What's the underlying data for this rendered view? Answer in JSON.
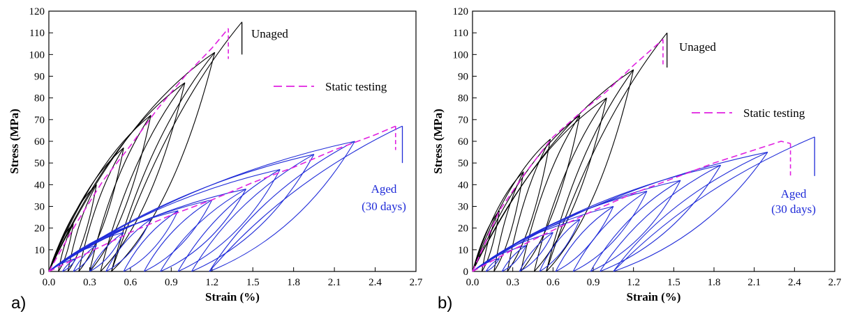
{
  "chart_data": [
    {
      "panel_label": "a)",
      "type": "line",
      "xlabel": "Strain (%)",
      "ylabel": "Stress (MPa)",
      "xlim": [
        0,
        2.7
      ],
      "ylim": [
        0,
        120
      ],
      "xticks": [
        "0.0",
        "0.3",
        "0.6",
        "0.9",
        "1.2",
        "1.5",
        "1.8",
        "2.1",
        "2.4",
        "2.7"
      ],
      "yticks": [
        "0",
        "10",
        "20",
        "30",
        "40",
        "50",
        "60",
        "70",
        "80",
        "90",
        "100",
        "110",
        "120"
      ],
      "legend": {
        "label": "Static testing",
        "position": "right"
      },
      "annotations": {
        "unaged": "Unaged",
        "aged_line1": "Aged",
        "aged_line2": "(30 days)"
      },
      "series": [
        {
          "color": "#000000",
          "peak_x": 1.42,
          "peak_y": 115,
          "fracture_y": 100,
          "cycles": [
            {
              "peak": [
                0.18,
                22
              ],
              "unload": 0.07
            },
            {
              "peak": [
                0.35,
                40
              ],
              "unload": 0.14
            },
            {
              "peak": [
                0.55,
                57
              ],
              "unload": 0.22
            },
            {
              "peak": [
                0.75,
                72
              ],
              "unload": 0.3
            },
            {
              "peak": [
                1.0,
                87
              ],
              "unload": 0.38
            },
            {
              "peak": [
                1.22,
                101
              ],
              "unload": 0.46
            }
          ]
        },
        {
          "color": "#1f2bd8",
          "peak_x": 2.6,
          "peak_y": 67,
          "fracture_y": 50,
          "cycles": [
            {
              "peak": [
                0.2,
                6
              ],
              "unload": 0.1
            },
            {
              "peak": [
                0.35,
                12
              ],
              "unload": 0.18
            },
            {
              "peak": [
                0.55,
                18
              ],
              "unload": 0.3
            },
            {
              "peak": [
                0.75,
                24
              ],
              "unload": 0.42
            },
            {
              "peak": [
                0.95,
                28
              ],
              "unload": 0.55
            },
            {
              "peak": [
                1.2,
                33
              ],
              "unload": 0.7
            },
            {
              "peak": [
                1.45,
                38
              ],
              "unload": 0.82
            },
            {
              "peak": [
                1.7,
                47
              ],
              "unload": 0.95
            },
            {
              "peak": [
                1.95,
                54
              ],
              "unload": 1.05
            },
            {
              "peak": [
                2.25,
                60
              ],
              "unload": 1.18
            }
          ]
        }
      ],
      "static_testing": [
        {
          "color": "#e020e0",
          "points": [
            [
              0,
              0
            ],
            [
              0.2,
              22
            ],
            [
              0.4,
              42
            ],
            [
              0.6,
              58
            ],
            [
              0.8,
              75
            ],
            [
              1.0,
              90
            ],
            [
              1.2,
              103
            ],
            [
              1.32,
              112
            ]
          ],
          "drop_to": 98
        },
        {
          "color": "#e020e0",
          "points": [
            [
              0,
              0
            ],
            [
              0.3,
              9
            ],
            [
              0.6,
              18
            ],
            [
              0.9,
              26
            ],
            [
              1.2,
              33
            ],
            [
              1.5,
              41
            ],
            [
              1.8,
              48
            ],
            [
              2.1,
              56
            ],
            [
              2.4,
              63
            ],
            [
              2.55,
              67
            ]
          ],
          "drop_to": 56
        }
      ]
    },
    {
      "panel_label": "b)",
      "type": "line",
      "xlabel": "Strain (%)",
      "ylabel": "Stress (MPa)",
      "xlim": [
        0,
        2.7
      ],
      "ylim": [
        0,
        120
      ],
      "xticks": [
        "0.0",
        "0.3",
        "0.6",
        "0.9",
        "1.2",
        "1.5",
        "1.8",
        "2.1",
        "2.4",
        "2.7"
      ],
      "yticks": [
        "0",
        "10",
        "20",
        "30",
        "40",
        "50",
        "60",
        "70",
        "80",
        "90",
        "100",
        "110",
        "120"
      ],
      "legend": {
        "label": "Static testing",
        "position": "right"
      },
      "annotations": {
        "unaged": "Unaged",
        "aged_line1": "Aged",
        "aged_line2": "(30 days)"
      },
      "series": [
        {
          "color": "#000000",
          "peak_x": 1.45,
          "peak_y": 110,
          "fracture_y": 94,
          "cycles": [
            {
              "peak": [
                0.2,
                28
              ],
              "unload": 0.07
            },
            {
              "peak": [
                0.38,
                46
              ],
              "unload": 0.16
            },
            {
              "peak": [
                0.58,
                61
              ],
              "unload": 0.26
            },
            {
              "peak": [
                0.8,
                72
              ],
              "unload": 0.36
            },
            {
              "peak": [
                1.0,
                80
              ],
              "unload": 0.46
            },
            {
              "peak": [
                1.2,
                93
              ],
              "unload": 0.55
            }
          ]
        },
        {
          "color": "#1f2bd8",
          "peak_x": 2.55,
          "peak_y": 62,
          "fracture_y": 44,
          "cycles": [
            {
              "peak": [
                0.2,
                6
              ],
              "unload": 0.1
            },
            {
              "peak": [
                0.4,
                12
              ],
              "unload": 0.22
            },
            {
              "peak": [
                0.6,
                18
              ],
              "unload": 0.35
            },
            {
              "peak": [
                0.8,
                24
              ],
              "unload": 0.5
            },
            {
              "peak": [
                1.05,
                30
              ],
              "unload": 0.62
            },
            {
              "peak": [
                1.3,
                37
              ],
              "unload": 0.75
            },
            {
              "peak": [
                1.55,
                42
              ],
              "unload": 0.88
            },
            {
              "peak": [
                1.85,
                49
              ],
              "unload": 0.95
            },
            {
              "peak": [
                2.2,
                55
              ],
              "unload": 1.05
            }
          ]
        }
      ],
      "static_testing": [
        {
          "color": "#e020e0",
          "points": [
            [
              0,
              0
            ],
            [
              0.2,
              28
            ],
            [
              0.4,
              46
            ],
            [
              0.6,
              62
            ],
            [
              0.8,
              73
            ],
            [
              1.0,
              83
            ],
            [
              1.2,
              95
            ],
            [
              1.42,
              107
            ]
          ],
          "drop_to": 95
        },
        {
          "color": "#e020e0",
          "points": [
            [
              0,
              0
            ],
            [
              0.3,
              10
            ],
            [
              0.6,
              19
            ],
            [
              0.9,
              28
            ],
            [
              1.2,
              36
            ],
            [
              1.5,
              43
            ],
            [
              1.8,
              50
            ],
            [
              2.1,
              56
            ],
            [
              2.3,
              60
            ],
            [
              2.37,
              59
            ]
          ],
          "drop_to": 44
        }
      ]
    }
  ]
}
